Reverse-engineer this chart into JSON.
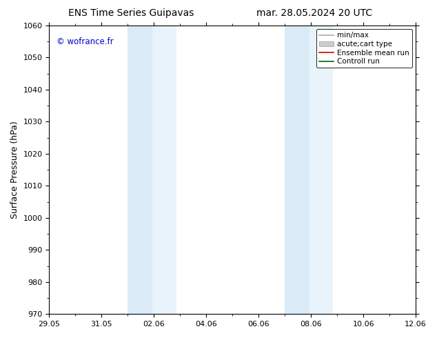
{
  "title_left": "ENS Time Series Guipavas",
  "title_right": "mar. 28.05.2024 20 UTC",
  "ylabel": "Surface Pressure (hPa)",
  "ylim": [
    970,
    1060
  ],
  "yticks": [
    970,
    980,
    990,
    1000,
    1010,
    1020,
    1030,
    1040,
    1050,
    1060
  ],
  "xtick_labels": [
    "29.05",
    "31.05",
    "02.06",
    "04.06",
    "06.06",
    "08.06",
    "10.06",
    "12.06"
  ],
  "xtick_positions_days": [
    0,
    2,
    4,
    6,
    8,
    10,
    12,
    14
  ],
  "xlim": [
    0,
    14
  ],
  "shaded_bands": [
    {
      "start_day": 3.0,
      "end_day": 3.95,
      "color": "#daeaf7"
    },
    {
      "start_day": 3.95,
      "end_day": 4.85,
      "color": "#e8f3fb"
    },
    {
      "start_day": 9.0,
      "end_day": 9.95,
      "color": "#daeaf7"
    },
    {
      "start_day": 9.95,
      "end_day": 10.85,
      "color": "#e8f3fb"
    }
  ],
  "watermark": "© wofrance.fr",
  "watermark_color": "#0000cc",
  "legend_entries": [
    {
      "label": "min/max",
      "color": "#aaaaaa",
      "lw": 1.2,
      "ls": "-",
      "thick": false
    },
    {
      "label": "acute;cart type",
      "color": "#cccccc",
      "lw": 6,
      "ls": "-",
      "thick": true
    },
    {
      "label": "Ensemble mean run",
      "color": "#cc0000",
      "lw": 1.2,
      "ls": "-",
      "thick": false
    },
    {
      "label": "Controll run",
      "color": "#006600",
      "lw": 1.2,
      "ls": "-",
      "thick": false
    }
  ],
  "background_color": "#ffffff",
  "plot_bg_color": "#ffffff",
  "title_fontsize": 10,
  "axis_label_fontsize": 9,
  "tick_fontsize": 8,
  "legend_fontsize": 7.5
}
